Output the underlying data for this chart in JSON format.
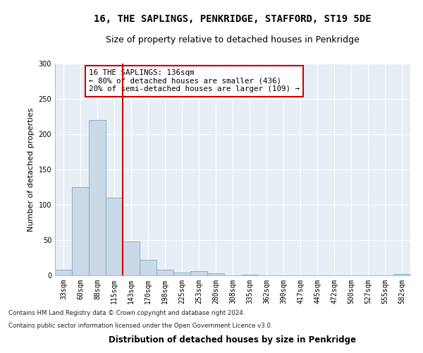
{
  "title": "16, THE SAPLINGS, PENKRIDGE, STAFFORD, ST19 5DE",
  "subtitle": "Size of property relative to detached houses in Penkridge",
  "xlabel": "Distribution of detached houses by size in Penkridge",
  "ylabel": "Number of detached properties",
  "categories": [
    "33sqm",
    "60sqm",
    "88sqm",
    "115sqm",
    "143sqm",
    "170sqm",
    "198sqm",
    "225sqm",
    "253sqm",
    "280sqm",
    "308sqm",
    "335sqm",
    "362sqm",
    "390sqm",
    "417sqm",
    "445sqm",
    "472sqm",
    "500sqm",
    "527sqm",
    "555sqm",
    "582sqm"
  ],
  "values": [
    8,
    125,
    220,
    110,
    48,
    22,
    8,
    4,
    6,
    3,
    0,
    1,
    0,
    0,
    0,
    0,
    0,
    0,
    0,
    0,
    2
  ],
  "bar_color": "#c9d9e8",
  "bar_edge_color": "#7aaabf",
  "vline_color": "#cc0000",
  "annotation_text": "16 THE SAPLINGS: 136sqm\n← 80% of detached houses are smaller (436)\n20% of semi-detached houses are larger (109) →",
  "annotation_box_facecolor": "#ffffff",
  "annotation_box_edgecolor": "#cc0000",
  "ylim": [
    0,
    300
  ],
  "yticks": [
    0,
    50,
    100,
    150,
    200,
    250,
    300
  ],
  "footer_line1": "Contains HM Land Registry data © Crown copyright and database right 2024.",
  "footer_line2": "Contains public sector information licensed under the Open Government Licence v3.0.",
  "plot_bg_color": "#e8eef5",
  "title_fontsize": 10,
  "subtitle_fontsize": 9,
  "tick_fontsize": 7,
  "ylabel_fontsize": 8,
  "xlabel_fontsize": 8.5,
  "annotation_fontsize": 7.8,
  "footer_fontsize": 6.2
}
